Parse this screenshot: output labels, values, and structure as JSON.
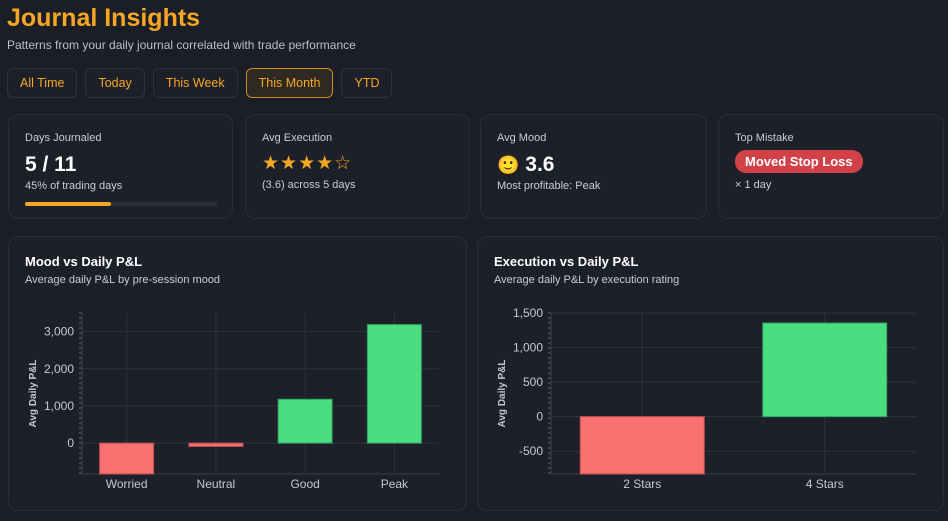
{
  "header": {
    "title": "Journal Insights",
    "subtitle": "Patterns from your daily journal correlated with trade performance"
  },
  "tabs": [
    {
      "label": "All Time"
    },
    {
      "label": "Today"
    },
    {
      "label": "This Week"
    },
    {
      "label": "This Month",
      "active": true
    },
    {
      "label": "YTD"
    }
  ],
  "stats": {
    "days": {
      "label": "Days Journaled",
      "value": "5 / 11",
      "sub": "45% of trading days",
      "progress_percent": 45
    },
    "execution": {
      "label": "Avg Execution",
      "stars": "★★★★☆",
      "rating": 4,
      "sub": "(3.6) across 5 days"
    },
    "mood": {
      "label": "Avg Mood",
      "emoji": "🙂",
      "value": "3.6",
      "sub": "Most profitable: Peak"
    },
    "mistake": {
      "label": "Top Mistake",
      "badge": "Moved Stop Loss",
      "sub": "× 1 day"
    }
  },
  "colors": {
    "accent": "#f5a623",
    "positive": "#4ade80",
    "negative": "#f87171",
    "badge": "#d24148"
  },
  "chart_data": [
    {
      "type": "bar",
      "title": "Mood vs Daily P&L",
      "subtitle": "Average daily P&L by pre-session mood",
      "ylabel": "Avg Daily P&L",
      "xlabel": "",
      "categories": [
        "Worried",
        "Neutral",
        "Good",
        "Peak"
      ],
      "values": [
        -830,
        -90,
        1180,
        3190
      ],
      "ylim": [
        -830,
        3500
      ],
      "yticks": [
        0,
        1000,
        2000,
        3000
      ],
      "ytick_labels": [
        "0",
        "1,000",
        "2,000",
        "3,000"
      ],
      "grid": true
    },
    {
      "type": "bar",
      "title": "Execution vs Daily P&L",
      "subtitle": "Average daily P&L by execution rating",
      "ylabel": "Avg Daily P&L",
      "xlabel": "",
      "categories": [
        "2 Stars",
        "4 Stars"
      ],
      "values": [
        -830,
        1355
      ],
      "ylim": [
        -830,
        1500
      ],
      "yticks": [
        -500,
        0,
        500,
        1000,
        1500
      ],
      "ytick_labels": [
        "-500",
        "0",
        "500",
        "1,000",
        "1,500"
      ],
      "grid": true
    }
  ]
}
